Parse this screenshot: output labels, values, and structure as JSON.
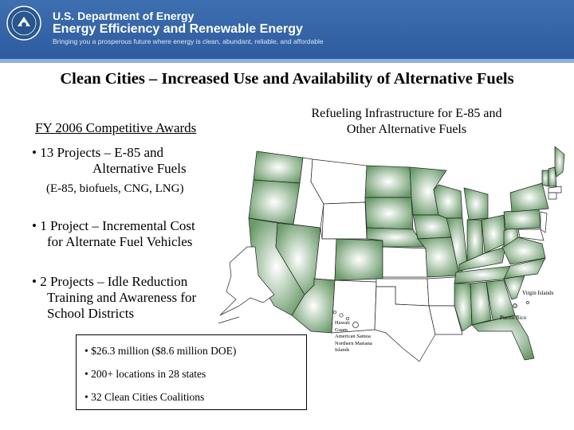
{
  "header": {
    "org_line1": "U.S. Department of Energy",
    "org_line2": "Energy Efficiency and Renewable Energy",
    "tagline": "Bringing you a prosperous future where energy is clean, abundant, reliable, and affordable",
    "accent_color": "#2e5c9e",
    "seal_icon": "doe-seal-icon"
  },
  "title": "Clean Cities – Increased Use and Availability of Alternative Fuels",
  "awards": {
    "heading": "FY 2006 Competitive Awards",
    "bullet1_line1": "• 13 Projects – E-85 and",
    "bullet1_line2": "Alternative Fuels",
    "bullet1_sub": "(E-85, biofuels, CNG, LNG)",
    "bullet2_line1": "• 1 Project – Incremental Cost",
    "bullet2_line2": "for Alternate Fuel Vehicles",
    "bullet3_line1": "• 2 Projects – Idle Reduction",
    "bullet3_line2": "Training and Awareness for",
    "bullet3_line3": "School Districts"
  },
  "summary": {
    "item1": "• $26.3 million ($8.6 million DOE)",
    "item2": "• 200+ locations in 28 states",
    "item3": "• 32 Clean Cities Coalitions"
  },
  "map": {
    "caption_line1": "Refueling Infrastructure for E-85 and",
    "caption_line2": "Other Alternative Fuels",
    "highlight_color": "#6a9a6a",
    "virgin_islands": "Virgin Islands",
    "puerto_rico": "Puerto Rico",
    "territories": [
      "Hawaii",
      "Guam",
      "American Samoa",
      "Northern Mariana",
      "Islands"
    ]
  }
}
